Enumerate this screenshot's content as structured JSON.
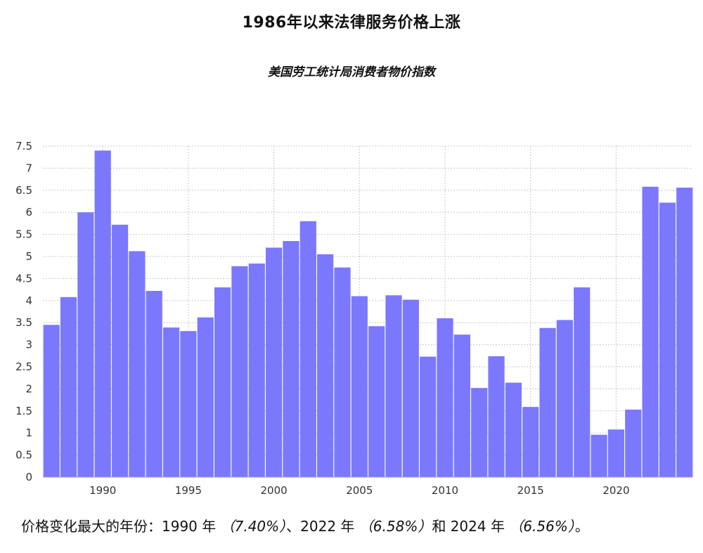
{
  "chart_data": {
    "type": "bar",
    "title": "1986年以来法律服务价格上涨",
    "subtitle": "美国劳工统计局消费者物价指数",
    "bar_color": "#7b78fe",
    "x": [
      1987,
      1988,
      1989,
      1990,
      1991,
      1992,
      1993,
      1994,
      1995,
      1996,
      1997,
      1998,
      1999,
      2000,
      2001,
      2002,
      2003,
      2004,
      2005,
      2006,
      2007,
      2008,
      2009,
      2010,
      2011,
      2012,
      2013,
      2014,
      2015,
      2016,
      2017,
      2018,
      2019,
      2020,
      2021,
      2022,
      2023,
      2024
    ],
    "values": [
      3.45,
      4.08,
      6.0,
      7.4,
      5.72,
      5.12,
      4.22,
      3.39,
      3.31,
      3.62,
      4.3,
      4.78,
      4.84,
      5.2,
      5.35,
      5.8,
      5.05,
      4.75,
      4.1,
      3.42,
      4.12,
      4.02,
      2.73,
      3.6,
      3.23,
      2.02,
      2.74,
      2.14,
      1.59,
      3.38,
      3.56,
      4.3,
      0.96,
      1.08,
      1.53,
      6.58,
      6.22,
      6.56
    ],
    "xticks": [
      1990,
      1995,
      2000,
      2005,
      2010,
      2015,
      2020
    ],
    "xtick_labels": [
      "1990",
      "1995",
      "2000",
      "2005",
      "2010",
      "2015",
      "2020"
    ],
    "yticks": [
      0,
      0.5,
      1,
      1.5,
      2,
      2.5,
      3,
      3.5,
      4,
      4.5,
      5,
      5.5,
      6,
      6.5,
      7,
      7.5
    ],
    "ytick_labels": [
      "0",
      "0.5",
      "1",
      "1.5",
      "2",
      "2.5",
      "3",
      "3.5",
      "4",
      "4.5",
      "5",
      "5.5",
      "6",
      "6.5",
      "7",
      "7.5"
    ],
    "ylim": [
      0,
      7.5
    ],
    "grid": true
  },
  "footnote": {
    "prefix": "价格变化最大的年份：1990 年",
    "value1": "（7.40%）",
    "sep1": "、2022 年",
    "value2": "（6.58%）",
    "sep2": "和 2024 年",
    "value3": "（6.56%）",
    "suffix": "。"
  }
}
